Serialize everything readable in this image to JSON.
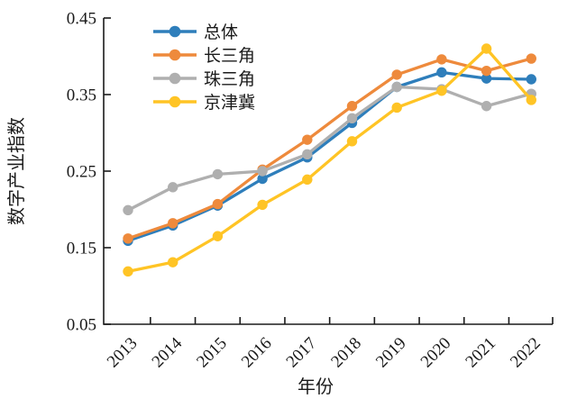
{
  "figure": {
    "background": "#ffffff",
    "axis_color": "#1a1a1a",
    "text_color": "#1a1a1a"
  },
  "chart_data": {
    "type": "line",
    "title": "",
    "xlabel": "年份",
    "ylabel": "数字产业指数",
    "categories": [
      "2013",
      "2014",
      "2015",
      "2016",
      "2017",
      "2018",
      "2019",
      "2020",
      "2021",
      "2022"
    ],
    "series": [
      {
        "name": "总体",
        "color": "#2E7EBB",
        "values": [
          0.159,
          0.179,
          0.205,
          0.24,
          0.268,
          0.313,
          0.36,
          0.379,
          0.371,
          0.37
        ]
      },
      {
        "name": "长三角",
        "color": "#EE8A3C",
        "values": [
          0.162,
          0.182,
          0.207,
          0.252,
          0.291,
          0.335,
          0.376,
          0.396,
          0.381,
          0.397
        ]
      },
      {
        "name": "珠三角",
        "color": "#AFAFAF",
        "values": [
          0.199,
          0.229,
          0.246,
          0.25,
          0.272,
          0.319,
          0.36,
          0.357,
          0.335,
          0.351
        ]
      },
      {
        "name": "京津冀",
        "color": "#FFC425",
        "values": [
          0.119,
          0.131,
          0.165,
          0.206,
          0.239,
          0.289,
          0.333,
          0.355,
          0.41,
          0.343
        ]
      }
    ],
    "ylim": [
      0.05,
      0.45
    ],
    "yticks": [
      0.05,
      0.15,
      0.25,
      0.35,
      0.45
    ],
    "ytick_format_decimals": 2,
    "grid": false,
    "legend_position": "top-left-inside",
    "marker": "circle",
    "line_width": 3.3,
    "marker_radius": 5.7
  }
}
